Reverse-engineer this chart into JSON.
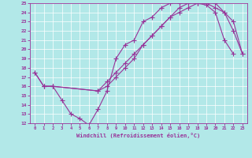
{
  "xlabel": "Windchill (Refroidissement éolien,°C)",
  "xlim": [
    -0.5,
    23.5
  ],
  "ylim": [
    12,
    25
  ],
  "xticks": [
    0,
    1,
    2,
    3,
    4,
    5,
    6,
    7,
    8,
    9,
    10,
    11,
    12,
    13,
    14,
    15,
    16,
    17,
    18,
    19,
    20,
    21,
    22,
    23
  ],
  "yticks": [
    12,
    13,
    14,
    15,
    16,
    17,
    18,
    19,
    20,
    21,
    22,
    23,
    24,
    25
  ],
  "bg_color": "#b2e8e8",
  "line_color": "#993399",
  "grid_color": "#ffffff",
  "line1_x": [
    0,
    1,
    2,
    3,
    4,
    5,
    6,
    7,
    8,
    9,
    10,
    11,
    12,
    13,
    14,
    15,
    16,
    17,
    18,
    19,
    20,
    21,
    22
  ],
  "line1_y": [
    17.5,
    16.0,
    16.0,
    14.5,
    13.0,
    12.5,
    11.8,
    13.5,
    15.5,
    19.0,
    20.5,
    21.0,
    23.0,
    23.5,
    24.5,
    25.0,
    25.0,
    25.0,
    25.0,
    24.8,
    24.0,
    21.0,
    19.5
  ],
  "line2_x": [
    0,
    1,
    2,
    7,
    8,
    9,
    10,
    11,
    12,
    13,
    14,
    15,
    16,
    17,
    18,
    19,
    20,
    21,
    22,
    23
  ],
  "line2_y": [
    17.5,
    16.0,
    16.0,
    15.5,
    16.0,
    17.0,
    18.0,
    19.0,
    20.5,
    21.5,
    22.5,
    23.5,
    24.0,
    24.5,
    25.0,
    25.0,
    25.0,
    24.0,
    23.0,
    19.5
  ],
  "line3_x": [
    1,
    2,
    7,
    8,
    9,
    10,
    11,
    12,
    13,
    14,
    15,
    16,
    17,
    18,
    19,
    20,
    21,
    22,
    23
  ],
  "line3_y": [
    16.0,
    16.0,
    15.5,
    16.5,
    17.5,
    18.5,
    19.5,
    20.5,
    21.5,
    22.5,
    23.5,
    24.5,
    25.0,
    25.0,
    25.0,
    24.5,
    24.0,
    22.0,
    19.5
  ]
}
